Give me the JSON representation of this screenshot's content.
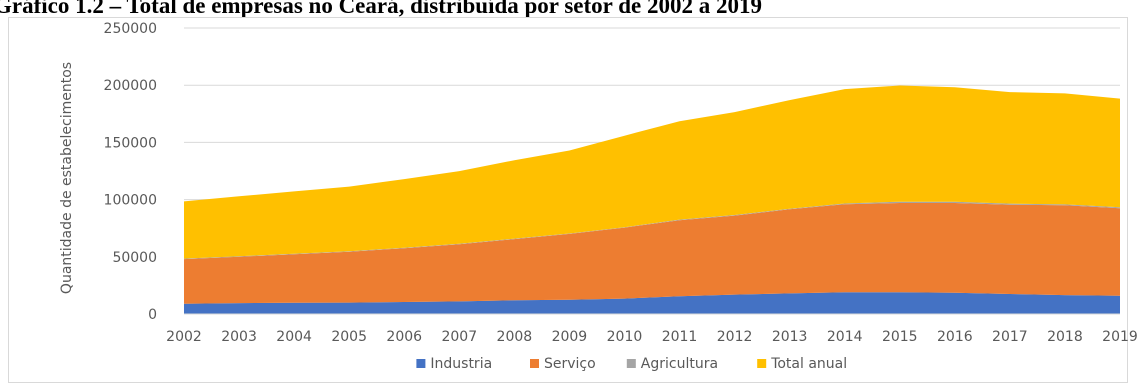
{
  "title": "Gráfico 1.2 – Total de empresas no Ceará, distribuída por setor de 2002 a 2019",
  "chart_data": {
    "type": "area",
    "stacked": true,
    "title": "Gráfico 1.2 – Total de empresas no Ceará, distribuída por setor de 2002 a 2019",
    "xlabel": "",
    "ylabel": "Quantidade de estabelecimentos",
    "ylim": [
      0,
      250000
    ],
    "yticks": [
      "0",
      "50000",
      "100000",
      "150000",
      "200000",
      "250000"
    ],
    "grid": true,
    "legend_position": "bottom",
    "categories": [
      "2002",
      "2003",
      "2004",
      "2005",
      "2006",
      "2007",
      "2008",
      "2009",
      "2010",
      "2011",
      "2012",
      "2013",
      "2014",
      "2015",
      "2016",
      "2017",
      "2018",
      "2019"
    ],
    "series": [
      {
        "name": "Industria",
        "color": "#4472c4",
        "values": [
          9000,
          9500,
          9800,
          10000,
          10500,
          11000,
          12000,
          12500,
          13500,
          15500,
          17000,
          18000,
          19000,
          19000,
          18500,
          17500,
          16500,
          16000
        ]
      },
      {
        "name": "Serviço",
        "color": "#ed7d31",
        "values": [
          39000,
          40500,
          42500,
          44500,
          47000,
          50000,
          53500,
          57500,
          62000,
          66500,
          69000,
          73500,
          77000,
          78000,
          78500,
          78000,
          78500,
          76500
        ]
      },
      {
        "name": "Agricultura",
        "color": "#a5a5a5",
        "values": [
          400,
          400,
          400,
          400,
          400,
          400,
          400,
          400,
          400,
          500,
          500,
          500,
          600,
          1200,
          1200,
          1000,
          800,
          800
        ]
      },
      {
        "name": "Total anual",
        "color": "#ffc000",
        "values": [
          50000,
          52500,
          54500,
          56500,
          60000,
          63500,
          68500,
          72500,
          80000,
          86000,
          90000,
          95000,
          100000,
          101500,
          100000,
          97500,
          97000,
          95000
        ]
      }
    ]
  }
}
